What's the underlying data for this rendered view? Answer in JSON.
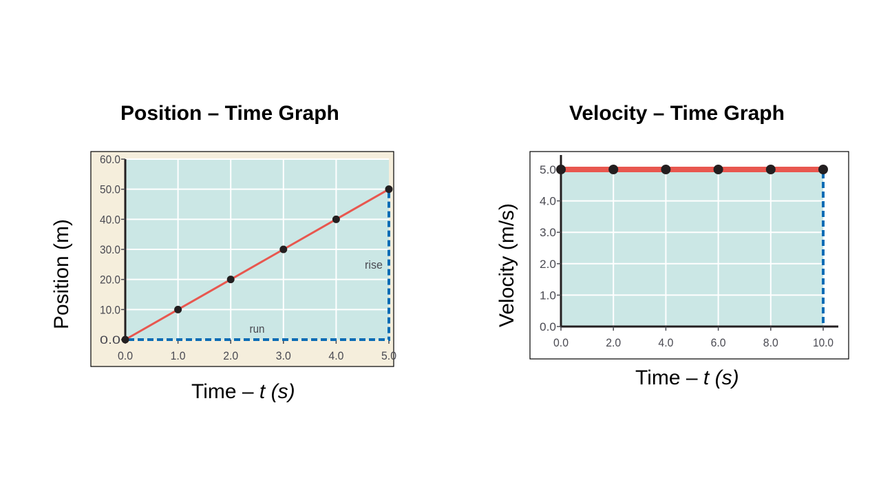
{
  "chart_data": [
    {
      "type": "line",
      "title": "Position – Time Graph",
      "xlabel_prefix": "Time – ",
      "xlabel_var": "t",
      "xlabel_unit": "(s)",
      "ylabel": "Position (m)",
      "xlim": [
        0,
        5
      ],
      "ylim": [
        0,
        60
      ],
      "xticks": [
        "0.0",
        "1.0",
        "2.0",
        "3.0",
        "4.0",
        "5.0"
      ],
      "yticks": [
        "0.0",
        "10.0",
        "20.0",
        "30.0",
        "40.0",
        "50.0",
        "60.0"
      ],
      "grid": true,
      "series": [
        {
          "name": "position",
          "x": [
            0,
            1,
            2,
            3,
            4,
            5
          ],
          "y": [
            0,
            10,
            20,
            30,
            40,
            50
          ]
        }
      ],
      "annotations": {
        "run": "run",
        "rise": "rise"
      },
      "colors": {
        "plot_bg": "#cbe7e5",
        "frame_bg": "#f5eedc",
        "line": "#e8574f",
        "point": "#231f20",
        "guide": "#0b6cb5",
        "grid": "#ffffff"
      }
    },
    {
      "type": "line",
      "title": "Velocity – Time Graph",
      "xlabel_prefix": "Time – ",
      "xlabel_var": "t",
      "xlabel_unit": "(s)",
      "ylabel": "Velocity (m/s)",
      "xlim": [
        0,
        10
      ],
      "ylim": [
        0,
        5
      ],
      "xticks": [
        "0.0",
        "2.0",
        "4.0",
        "6.0",
        "8.0",
        "10.0"
      ],
      "yticks": [
        "0.0",
        "1.0",
        "2.0",
        "3.0",
        "4.0",
        "5.0"
      ],
      "grid": true,
      "series": [
        {
          "name": "velocity",
          "x": [
            0,
            2,
            4,
            6,
            8,
            10
          ],
          "y": [
            5,
            5,
            5,
            5,
            5,
            5
          ]
        }
      ],
      "colors": {
        "plot_bg": "#cbe7e5",
        "frame_bg": "#ffffff",
        "line": "#e8574f",
        "point": "#231f20",
        "guide": "#0b6cb5",
        "grid": "#ffffff"
      }
    }
  ]
}
